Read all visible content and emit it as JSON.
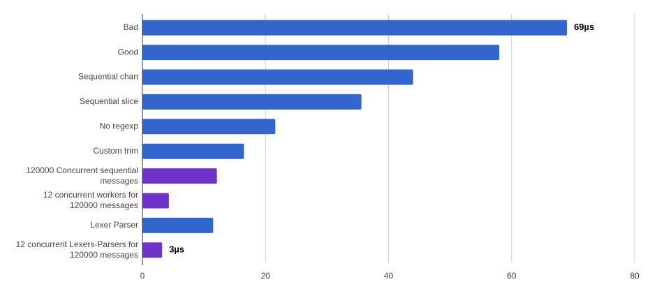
{
  "chart_data": {
    "type": "hbar",
    "categories": [
      "Bad",
      "Good",
      "Sequential chan",
      "Sequential slice",
      "No regexp",
      "Custom trim",
      [
        "120000 Concurrent sequential",
        "messages"
      ],
      [
        "12 concurrent workers for",
        "120000 messages"
      ],
      "Lexer Parser",
      [
        "12 concurrent Lexers-Parsers for",
        "120000 messages"
      ]
    ],
    "values": [
      69,
      58,
      44,
      35.6,
      21.6,
      16.5,
      12.1,
      4.3,
      11.5,
      3.2
    ],
    "value_labels": [
      "69µs",
      null,
      null,
      null,
      null,
      null,
      null,
      null,
      null,
      "3µs"
    ],
    "colors": [
      "#3366cc",
      "#3366cc",
      "#3366cc",
      "#3366cc",
      "#3366cc",
      "#3366cc",
      "#6f33cc",
      "#6f33cc",
      "#3366cc",
      "#6f33cc"
    ],
    "xlim": [
      0,
      80
    ],
    "xticks": [
      0,
      20,
      40,
      60,
      80
    ],
    "grid": true
  }
}
